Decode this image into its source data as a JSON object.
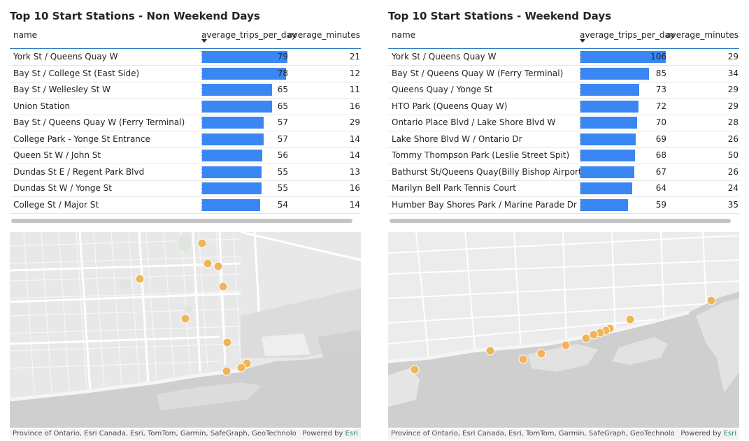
{
  "colors": {
    "bar": "#3a87f3",
    "marker": "#f0b45a",
    "header_rule": "#2b7bbf"
  },
  "left": {
    "title": "Top 10 Start Stations - Non Weekend Days",
    "columns": [
      "name",
      "average_trips_per_day",
      "average_minutes"
    ],
    "max_trips": 79,
    "rows": [
      {
        "name": "York St / Queens Quay W",
        "trips": "79",
        "minutes": "21"
      },
      {
        "name": "Bay St / College St (East Side)",
        "trips": "78",
        "minutes": "12"
      },
      {
        "name": "Bay St / Wellesley St W",
        "trips": "65",
        "minutes": "11"
      },
      {
        "name": "Union Station",
        "trips": "65",
        "minutes": "16"
      },
      {
        "name": "Bay St / Queens Quay W (Ferry Terminal)",
        "trips": "57",
        "minutes": "29"
      },
      {
        "name": "College Park - Yonge St Entrance",
        "trips": "57",
        "minutes": "14"
      },
      {
        "name": "Queen St W / John St",
        "trips": "56",
        "minutes": "14"
      },
      {
        "name": "Dundas St E / Regent Park Blvd",
        "trips": "55",
        "minutes": "13"
      },
      {
        "name": "Dundas St W / Yonge St",
        "trips": "55",
        "minutes": "16"
      },
      {
        "name": "College St / Major St",
        "trips": "54",
        "minutes": "14"
      }
    ],
    "map_attribution": "Province of Ontario, Esri Canada, Esri, TomTom, Garmin, SafeGraph, GeoTechnologi...",
    "powered_by": "Powered by",
    "esri": "Esri"
  },
  "right": {
    "title": "Top 10 Start Stations - Weekend Days",
    "columns": [
      "name",
      "average_trips_per_day",
      "average_minutes"
    ],
    "max_trips": 106,
    "rows": [
      {
        "name": "York St / Queens Quay W",
        "trips": "106",
        "minutes": "29"
      },
      {
        "name": "Bay St / Queens Quay W (Ferry Terminal)",
        "trips": "85",
        "minutes": "34"
      },
      {
        "name": "Queens Quay / Yonge St",
        "trips": "73",
        "minutes": "29"
      },
      {
        "name": "HTO Park (Queens Quay W)",
        "trips": "72",
        "minutes": "29"
      },
      {
        "name": "Ontario Place Blvd / Lake Shore Blvd W",
        "trips": "70",
        "minutes": "28"
      },
      {
        "name": "Lake Shore Blvd W / Ontario Dr",
        "trips": "69",
        "minutes": "26"
      },
      {
        "name": "Tommy Thompson Park (Leslie Street Spit)",
        "trips": "68",
        "minutes": "50"
      },
      {
        "name": "Bathurst St/Queens Quay(Billy Bishop Airport)",
        "trips": "67",
        "minutes": "26"
      },
      {
        "name": "Marilyn Bell Park Tennis Court",
        "trips": "64",
        "minutes": "24"
      },
      {
        "name": "Humber Bay Shores Park / Marine Parade Dr",
        "trips": "59",
        "minutes": "35"
      }
    ],
    "map_attribution": "Province of Ontario, Esri Canada, Esri, TomTom, Garmin, SafeGraph, GeoTechnologi...",
    "powered_by": "Powered by",
    "esri": "Esri"
  }
}
